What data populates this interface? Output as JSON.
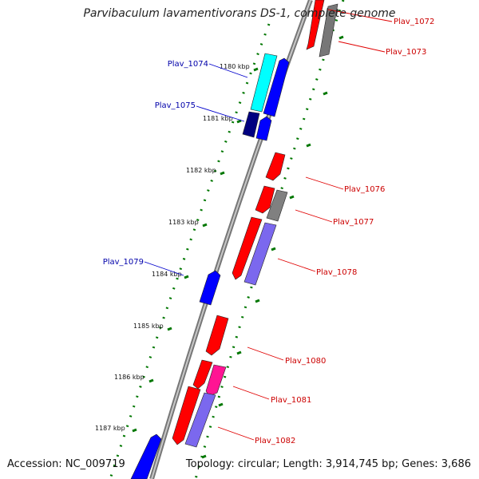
{
  "header": {
    "title": "Parvibaculum lavamentivorans DS-1, complete genome"
  },
  "footer": {
    "accession": "Accession: NC_009719",
    "summary": "Topology: circular; Length: 3,914,745 bp; Genes: 3,686"
  },
  "colors": {
    "forward_cds": "#ff0000",
    "reverse_cds": "#0000ff",
    "cyan_cds": "#00ffff",
    "navy_cds": "#000080",
    "gray_cds": "#808080",
    "pink_cds": "#ff1493",
    "lavender_cds": "#7b68ee",
    "backbone": "#888888",
    "ticks": "#007700",
    "forward_label": "#cc0000",
    "reverse_label": "#0000aa"
  },
  "scale_ticks": [
    {
      "kbp": 1180,
      "label": "1180 kbp"
    },
    {
      "kbp": 1181,
      "label": "1181 kbp"
    },
    {
      "kbp": 1182,
      "label": "1182 kbp"
    },
    {
      "kbp": 1183,
      "label": "1183 kbp"
    },
    {
      "kbp": 1184,
      "label": "1184 kbp"
    },
    {
      "kbp": 1185,
      "label": "1185 kbp"
    },
    {
      "kbp": 1186,
      "label": "1186 kbp"
    },
    {
      "kbp": 1187,
      "label": "1187 kbp"
    }
  ],
  "genes": [
    {
      "label": "Plav_1072",
      "strand": "+"
    },
    {
      "label": "Plav_1073",
      "strand": "+"
    },
    {
      "label": "Plav_1074",
      "strand": "-"
    },
    {
      "label": "Plav_1075",
      "strand": "-"
    },
    {
      "label": "Plav_1076",
      "strand": "+"
    },
    {
      "label": "Plav_1077",
      "strand": "+"
    },
    {
      "label": "Plav_1078",
      "strand": "+"
    },
    {
      "label": "Plav_1079",
      "strand": "-"
    },
    {
      "label": "Plav_1080",
      "strand": "+"
    },
    {
      "label": "Plav_1081",
      "strand": "+"
    },
    {
      "label": "Plav_1082",
      "strand": "+"
    }
  ]
}
